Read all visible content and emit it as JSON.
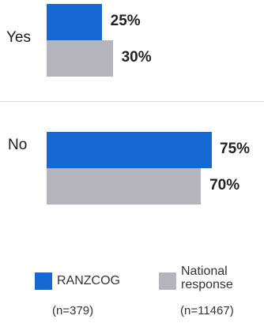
{
  "chart_data": {
    "type": "bar",
    "orientation": "horizontal",
    "categories": [
      "Yes",
      "No"
    ],
    "series": [
      {
        "name": "RANZCOG",
        "n_label": "(n=379)",
        "values": [
          25,
          75
        ],
        "color": "#1668d3"
      },
      {
        "name": "National response",
        "n_label": "(n=11467)",
        "values": [
          30,
          70
        ],
        "color": "#b4b4be"
      }
    ],
    "value_suffix": "%",
    "xlim": [
      0,
      75
    ],
    "grid": false,
    "legend_position": "bottom"
  }
}
